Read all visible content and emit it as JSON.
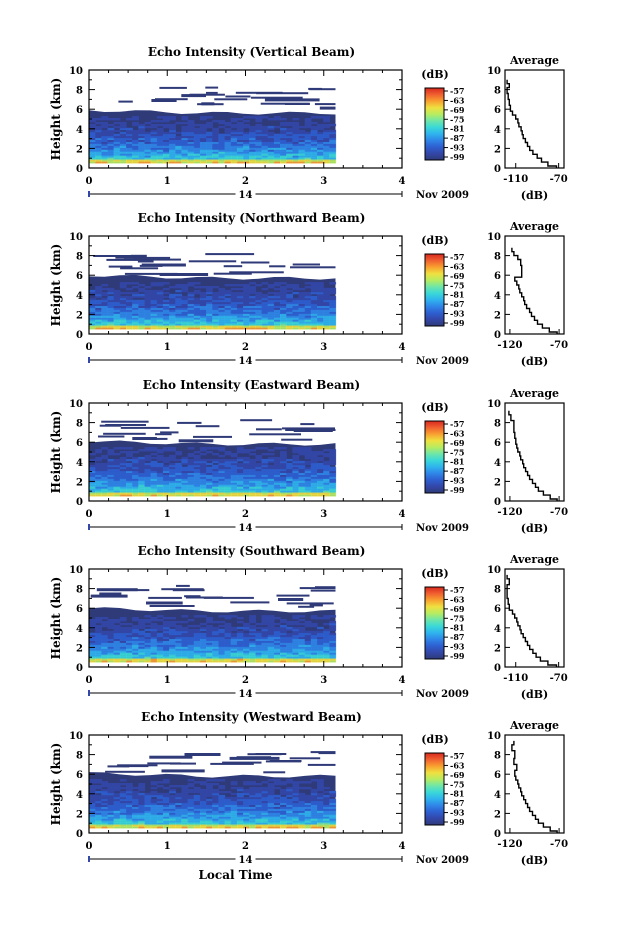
{
  "figure": {
    "date_day": "14",
    "date_month_year": "Nov 2009",
    "x_title": "Local Time"
  },
  "colors": {
    "background": "#2f3a78",
    "scale": [
      "#2f3a78",
      "#3347a8",
      "#2e5fd0",
      "#2f86e8",
      "#2fb4ee",
      "#3ad8d8",
      "#6fe6a8",
      "#b8ec60",
      "#f0e040",
      "#f8a030",
      "#f06030",
      "#d82820"
    ]
  },
  "chart_data": [
    {
      "type": "heatmap",
      "title": "Echo Intensity (Vertical Beam)",
      "xlabel": "",
      "ylabel": "Height (km)",
      "xlim": [
        0,
        4
      ],
      "ylim": [
        0,
        10
      ],
      "x_ticks": [
        "0",
        "1",
        "2",
        "3",
        "4"
      ],
      "y_ticks": [
        "0",
        "2",
        "4",
        "6",
        "8",
        "10"
      ],
      "data_end_time": 3.15,
      "main_layer_top_km": 5.6,
      "colorbar": {
        "unit": "(dB)",
        "ticks": [
          "-57",
          "-63",
          "-69",
          "-75",
          "-81",
          "-87",
          "-93",
          "-99"
        ]
      },
      "average": {
        "title": "Average",
        "xlabel": "(dB)",
        "x_ticks": [
          "-110",
          "-70"
        ],
        "xlim": [
          -120,
          -65
        ],
        "ylim": [
          0,
          10
        ],
        "y_ticks": [
          "0",
          "2",
          "4",
          "6",
          "8",
          "10"
        ],
        "profile": [
          [
            -72,
            0.2
          ],
          [
            -80,
            0.6
          ],
          [
            -86,
            1.0
          ],
          [
            -90,
            1.4
          ],
          [
            -94,
            1.8
          ],
          [
            -97,
            2.2
          ],
          [
            -99,
            2.6
          ],
          [
            -101,
            3.0
          ],
          [
            -103,
            3.4
          ],
          [
            -104,
            3.8
          ],
          [
            -105,
            4.2
          ],
          [
            -107,
            4.6
          ],
          [
            -108,
            5.0
          ],
          [
            -110,
            5.4
          ],
          [
            -113,
            5.8
          ],
          [
            -115,
            6.4
          ],
          [
            -116,
            7.0
          ],
          [
            -117,
            7.6
          ],
          [
            -118,
            8.2
          ],
          [
            -116,
            8.6
          ],
          [
            -118,
            9.0
          ]
        ]
      }
    },
    {
      "type": "heatmap",
      "title": "Echo Intensity (Northward Beam)",
      "xlabel": "",
      "ylabel": "Height (km)",
      "xlim": [
        0,
        4
      ],
      "ylim": [
        0,
        10
      ],
      "x_ticks": [
        "0",
        "1",
        "2",
        "3",
        "4"
      ],
      "y_ticks": [
        "0",
        "2",
        "4",
        "6",
        "8",
        "10"
      ],
      "data_end_time": 3.15,
      "main_layer_top_km": 5.7,
      "colorbar": {
        "unit": "(dB)",
        "ticks": [
          "-57",
          "-63",
          "-69",
          "-75",
          "-81",
          "-87",
          "-93",
          "-99"
        ]
      },
      "average": {
        "title": "Average",
        "xlabel": "(dB)",
        "x_ticks": [
          "-120",
          "-70"
        ],
        "xlim": [
          -125,
          -65
        ],
        "ylim": [
          0,
          10
        ],
        "y_ticks": [
          "0",
          "2",
          "4",
          "6",
          "8",
          "10"
        ],
        "profile": [
          [
            -72,
            0.2
          ],
          [
            -80,
            0.6
          ],
          [
            -87,
            1.0
          ],
          [
            -92,
            1.4
          ],
          [
            -95,
            1.8
          ],
          [
            -98,
            2.2
          ],
          [
            -100,
            2.6
          ],
          [
            -103,
            3.0
          ],
          [
            -105,
            3.4
          ],
          [
            -106,
            3.8
          ],
          [
            -108,
            4.2
          ],
          [
            -110,
            4.6
          ],
          [
            -111,
            5.0
          ],
          [
            -113,
            5.4
          ],
          [
            -115,
            5.8
          ],
          [
            -108,
            6.2
          ],
          [
            -108,
            7.0
          ],
          [
            -109,
            7.6
          ],
          [
            -112,
            8.0
          ],
          [
            -116,
            8.4
          ],
          [
            -118,
            8.8
          ]
        ]
      }
    },
    {
      "type": "heatmap",
      "title": "Echo Intensity (Eastward Beam)",
      "xlabel": "",
      "ylabel": "Height (km)",
      "xlim": [
        0,
        4
      ],
      "ylim": [
        0,
        10
      ],
      "x_ticks": [
        "0",
        "1",
        "2",
        "3",
        "4"
      ],
      "y_ticks": [
        "0",
        "2",
        "4",
        "6",
        "8",
        "10"
      ],
      "data_end_time": 3.15,
      "main_layer_top_km": 5.8,
      "colorbar": {
        "unit": "(dB)",
        "ticks": [
          "-57",
          "-63",
          "-69",
          "-75",
          "-81",
          "-87",
          "-93",
          "-99"
        ]
      },
      "average": {
        "title": "Average",
        "xlabel": "(dB)",
        "x_ticks": [
          "-120",
          "-70"
        ],
        "xlim": [
          -125,
          -65
        ],
        "ylim": [
          0,
          10
        ],
        "y_ticks": [
          "0",
          "2",
          "4",
          "6",
          "8",
          "10"
        ],
        "profile": [
          [
            -72,
            0.2
          ],
          [
            -79,
            0.6
          ],
          [
            -86,
            1.0
          ],
          [
            -91,
            1.4
          ],
          [
            -94,
            1.8
          ],
          [
            -97,
            2.2
          ],
          [
            -100,
            2.6
          ],
          [
            -102,
            3.0
          ],
          [
            -104,
            3.4
          ],
          [
            -106,
            3.8
          ],
          [
            -107,
            4.2
          ],
          [
            -109,
            4.6
          ],
          [
            -110,
            5.0
          ],
          [
            -112,
            5.4
          ],
          [
            -113,
            5.8
          ],
          [
            -114,
            6.4
          ],
          [
            -115,
            7.0
          ],
          [
            -116,
            7.6
          ],
          [
            -116,
            8.2
          ],
          [
            -119,
            8.8
          ],
          [
            -121,
            9.2
          ]
        ]
      }
    },
    {
      "type": "heatmap",
      "title": "Echo Intensity (Southward Beam)",
      "xlabel": "",
      "ylabel": "Height (km)",
      "xlim": [
        0,
        4
      ],
      "ylim": [
        0,
        10
      ],
      "x_ticks": [
        "0",
        "1",
        "2",
        "3",
        "4"
      ],
      "y_ticks": [
        "0",
        "2",
        "4",
        "6",
        "8",
        "10"
      ],
      "data_end_time": 3.15,
      "main_layer_top_km": 5.7,
      "colorbar": {
        "unit": "(dB)",
        "ticks": [
          "-57",
          "-63",
          "-69",
          "-75",
          "-81",
          "-87",
          "-93",
          "-99"
        ]
      },
      "average": {
        "title": "Average",
        "xlabel": "(dB)",
        "x_ticks": [
          "-110",
          "-70"
        ],
        "xlim": [
          -120,
          -65
        ],
        "ylim": [
          0,
          10
        ],
        "y_ticks": [
          "0",
          "2",
          "4",
          "6",
          "8",
          "10"
        ],
        "profile": [
          [
            -72,
            0.2
          ],
          [
            -80,
            0.6
          ],
          [
            -87,
            1.0
          ],
          [
            -91,
            1.4
          ],
          [
            -94,
            1.8
          ],
          [
            -97,
            2.2
          ],
          [
            -99,
            2.6
          ],
          [
            -101,
            3.0
          ],
          [
            -103,
            3.4
          ],
          [
            -105,
            3.8
          ],
          [
            -106,
            4.2
          ],
          [
            -108,
            4.6
          ],
          [
            -109,
            5.0
          ],
          [
            -111,
            5.4
          ],
          [
            -113,
            5.8
          ],
          [
            -116,
            6.4
          ],
          [
            -117,
            7.0
          ],
          [
            -118,
            7.6
          ],
          [
            -118,
            8.4
          ],
          [
            -116,
            9.0
          ],
          [
            -118,
            9.4
          ]
        ]
      }
    },
    {
      "type": "heatmap",
      "title": "Echo Intensity (Westward Beam)",
      "xlabel": "Local Time",
      "ylabel": "Height (km)",
      "xlim": [
        0,
        4
      ],
      "ylim": [
        0,
        10
      ],
      "x_ticks": [
        "0",
        "1",
        "2",
        "3",
        "4"
      ],
      "y_ticks": [
        "0",
        "2",
        "4",
        "6",
        "8",
        "10"
      ],
      "data_end_time": 3.15,
      "main_layer_top_km": 5.8,
      "colorbar": {
        "unit": "(dB)",
        "ticks": [
          "-57",
          "-63",
          "-69",
          "-75",
          "-81",
          "-87",
          "-93",
          "-99"
        ]
      },
      "average": {
        "title": "Average",
        "xlabel": "(dB)",
        "x_ticks": [
          "-120",
          "-70"
        ],
        "xlim": [
          -125,
          -65
        ],
        "ylim": [
          0,
          10
        ],
        "y_ticks": [
          "0",
          "2",
          "4",
          "6",
          "8",
          "10"
        ],
        "profile": [
          [
            -72,
            0.2
          ],
          [
            -79,
            0.6
          ],
          [
            -86,
            1.0
          ],
          [
            -91,
            1.4
          ],
          [
            -94,
            1.8
          ],
          [
            -97,
            2.2
          ],
          [
            -100,
            2.6
          ],
          [
            -102,
            3.0
          ],
          [
            -104,
            3.4
          ],
          [
            -106,
            3.8
          ],
          [
            -108,
            4.2
          ],
          [
            -109,
            4.6
          ],
          [
            -111,
            5.0
          ],
          [
            -112,
            5.4
          ],
          [
            -114,
            5.8
          ],
          [
            -115,
            6.4
          ],
          [
            -113,
            7.0
          ],
          [
            -116,
            7.6
          ],
          [
            -115,
            8.4
          ],
          [
            -118,
            9.0
          ],
          [
            -116,
            9.4
          ]
        ]
      }
    }
  ]
}
